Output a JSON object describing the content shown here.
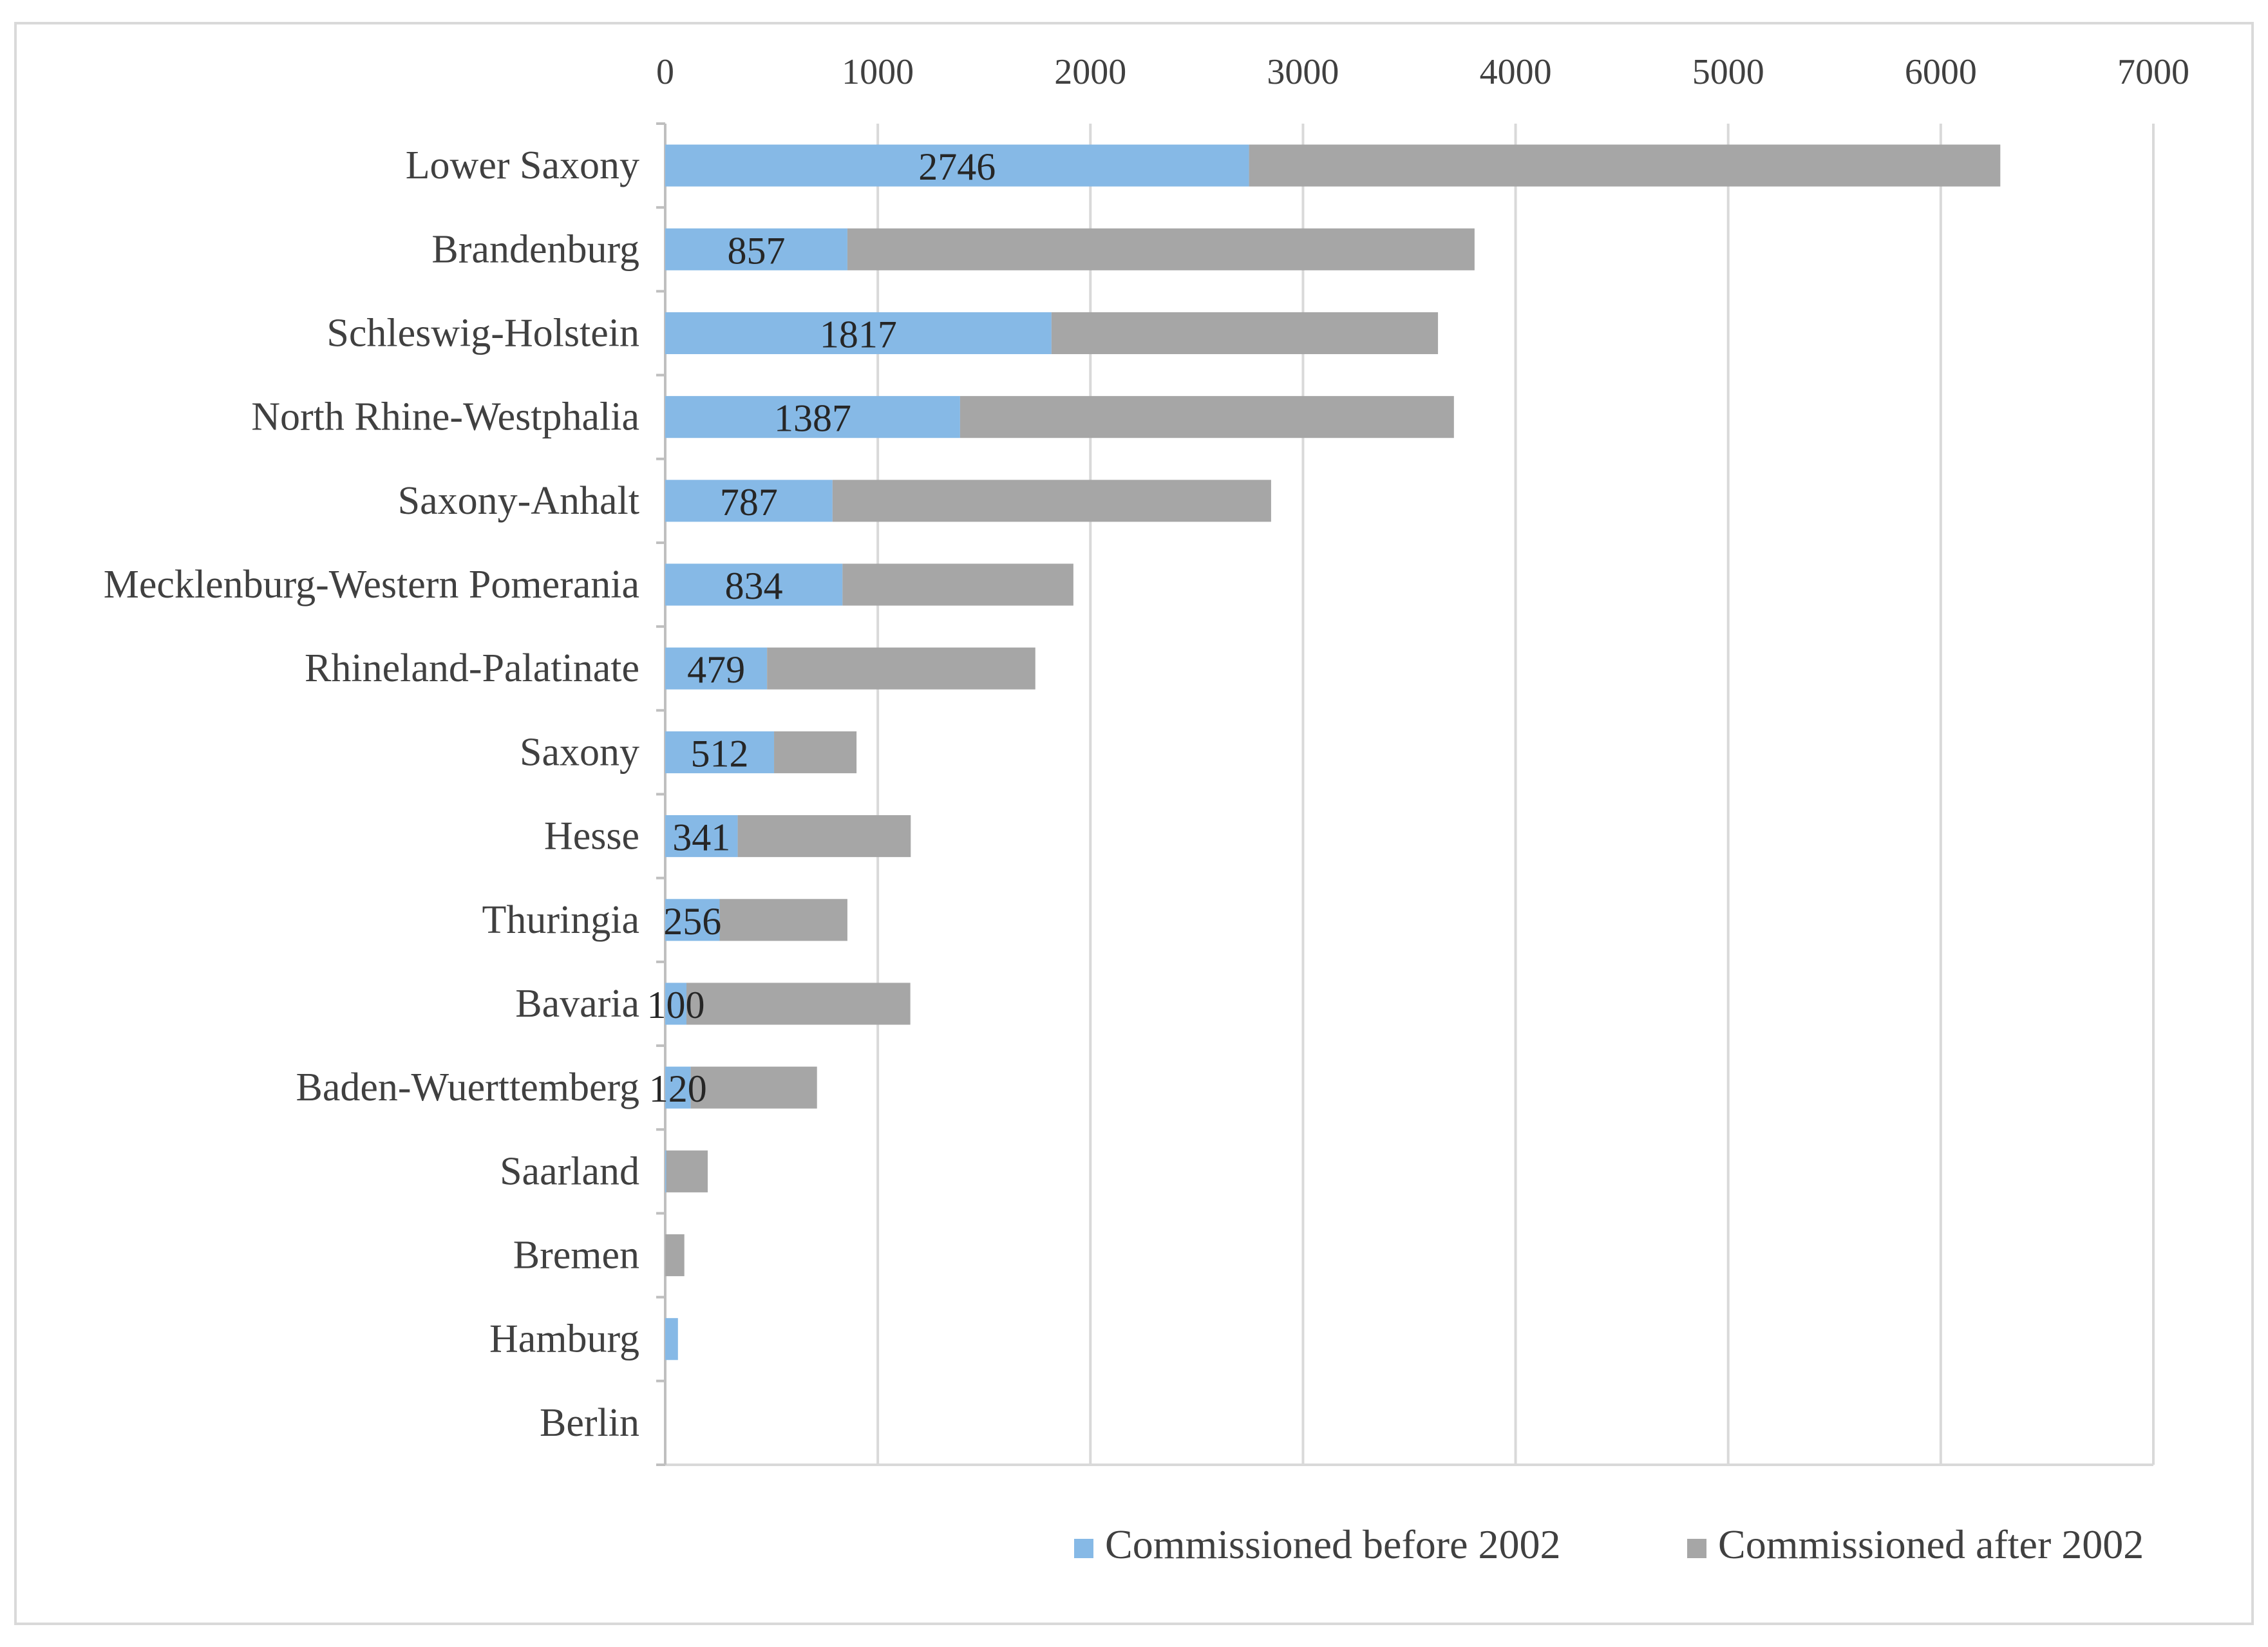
{
  "chart_data": {
    "type": "bar",
    "orientation": "horizontal",
    "stacked": true,
    "categories": [
      "Lower Saxony",
      "Brandenburg",
      "Schleswig-Holstein",
      "North Rhine-Westphalia",
      "Saxony-Anhalt",
      "Mecklenburg-Western Pomerania",
      "Rhineland-Palatinate",
      "Saxony",
      "Hesse",
      "Thuringia",
      "Bavaria",
      "Baden-Wuerttemberg",
      "Saarland",
      "Bremen",
      "Hamburg",
      "Berlin"
    ],
    "series": [
      {
        "name": "Commissioned before 2002",
        "color": "#86b9e6",
        "values": [
          2746,
          857,
          1817,
          1387,
          787,
          834,
          479,
          512,
          341,
          256,
          100,
          120,
          5,
          0,
          60,
          0
        ],
        "data_labels": [
          "2746",
          "857",
          "1817",
          "1387",
          "787",
          "834",
          "479",
          "512",
          "341",
          "256",
          "100",
          "120",
          "",
          "",
          "",
          ""
        ]
      },
      {
        "name": "Commissioned after 2002",
        "color": "#a6a6a6",
        "values": [
          3534,
          2950,
          1818,
          2323,
          2063,
          1086,
          1262,
          388,
          814,
          601,
          1053,
          594,
          195,
          90,
          0,
          0
        ]
      }
    ],
    "xlim": [
      0,
      7000
    ],
    "x_ticks": [
      0,
      1000,
      2000,
      3000,
      4000,
      5000,
      6000,
      7000
    ],
    "x_axis_position": "top",
    "grid": true,
    "legend_position": "bottom-right",
    "title": "",
    "xlabel": "",
    "ylabel": ""
  }
}
